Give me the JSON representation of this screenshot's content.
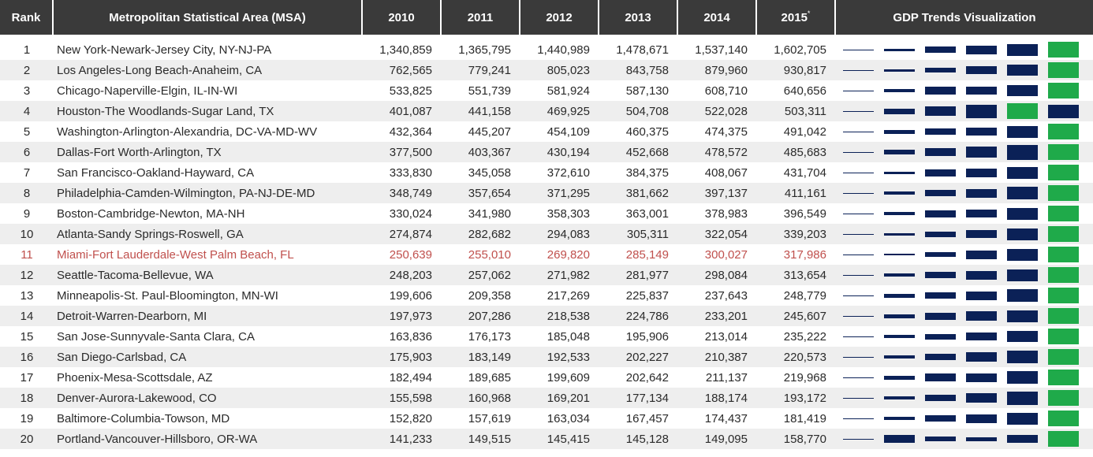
{
  "headers": {
    "rank": "Rank",
    "msa": "Metropolitan Statistical Area (MSA)",
    "years": [
      "2010",
      "2011",
      "2012",
      "2013",
      "2014",
      "2015"
    ],
    "footnote_mark": "*",
    "viz": "GDP Trends Visualization"
  },
  "colors": {
    "bar": "#0b2157",
    "max_bar": "#1faa4a",
    "highlight_text": "#c0504d",
    "header_bg": "#3a3a3a",
    "stripe": "#eeeeee"
  },
  "rows": [
    {
      "rank": "1",
      "msa": "New York-Newark-Jersey City, NY-NJ-PA",
      "values": [
        "1,340,859",
        "1,365,795",
        "1,440,989",
        "1,478,671",
        "1,537,140",
        "1,602,705"
      ]
    },
    {
      "rank": "2",
      "msa": "Los Angeles-Long Beach-Anaheim, CA",
      "values": [
        "762,565",
        "779,241",
        "805,023",
        "843,758",
        "879,960",
        "930,817"
      ]
    },
    {
      "rank": "3",
      "msa": "Chicago-Naperville-Elgin, IL-IN-WI",
      "values": [
        "533,825",
        "551,739",
        "581,924",
        "587,130",
        "608,710",
        "640,656"
      ]
    },
    {
      "rank": "4",
      "msa": "Houston-The Woodlands-Sugar Land, TX",
      "values": [
        "401,087",
        "441,158",
        "469,925",
        "504,708",
        "522,028",
        "503,311"
      ]
    },
    {
      "rank": "5",
      "msa": "Washington-Arlington-Alexandria, DC-VA-MD-WV",
      "values": [
        "432,364",
        "445,207",
        "454,109",
        "460,375",
        "474,375",
        "491,042"
      ]
    },
    {
      "rank": "6",
      "msa": "Dallas-Fort Worth-Arlington, TX",
      "values": [
        "377,500",
        "403,367",
        "430,194",
        "452,668",
        "478,572",
        "485,683"
      ]
    },
    {
      "rank": "7",
      "msa": "San Francisco-Oakland-Hayward, CA",
      "values": [
        "333,830",
        "345,058",
        "372,610",
        "384,375",
        "408,067",
        "431,704"
      ]
    },
    {
      "rank": "8",
      "msa": "Philadelphia-Camden-Wilmington, PA-NJ-DE-MD",
      "values": [
        "348,749",
        "357,654",
        "371,295",
        "381,662",
        "397,137",
        "411,161"
      ]
    },
    {
      "rank": "9",
      "msa": "Boston-Cambridge-Newton, MA-NH",
      "values": [
        "330,024",
        "341,980",
        "358,303",
        "363,001",
        "378,983",
        "396,549"
      ]
    },
    {
      "rank": "10",
      "msa": "Atlanta-Sandy Springs-Roswell, GA",
      "values": [
        "274,874",
        "282,682",
        "294,083",
        "305,311",
        "322,054",
        "339,203"
      ]
    },
    {
      "rank": "11",
      "msa": "Miami-Fort Lauderdale-West Palm Beach, FL",
      "values": [
        "250,639",
        "255,010",
        "269,820",
        "285,149",
        "300,027",
        "317,986"
      ],
      "highlight": true
    },
    {
      "rank": "12",
      "msa": "Seattle-Tacoma-Bellevue, WA",
      "values": [
        "248,203",
        "257,062",
        "271,982",
        "281,977",
        "298,084",
        "313,654"
      ]
    },
    {
      "rank": "13",
      "msa": "Minneapolis-St. Paul-Bloomington, MN-WI",
      "values": [
        "199,606",
        "209,358",
        "217,269",
        "225,837",
        "237,643",
        "248,779"
      ]
    },
    {
      "rank": "14",
      "msa": "Detroit-Warren-Dearborn, MI",
      "values": [
        "197,973",
        "207,286",
        "218,538",
        "224,786",
        "233,201",
        "245,607"
      ]
    },
    {
      "rank": "15",
      "msa": "San Jose-Sunnyvale-Santa Clara, CA",
      "values": [
        "163,836",
        "176,173",
        "185,048",
        "195,906",
        "213,014",
        "235,222"
      ]
    },
    {
      "rank": "16",
      "msa": "San Diego-Carlsbad, CA",
      "values": [
        "175,903",
        "183,149",
        "192,533",
        "202,227",
        "210,387",
        "220,573"
      ]
    },
    {
      "rank": "17",
      "msa": "Phoenix-Mesa-Scottsdale, AZ",
      "values": [
        "182,494",
        "189,685",
        "199,609",
        "202,642",
        "211,137",
        "219,968"
      ]
    },
    {
      "rank": "18",
      "msa": "Denver-Aurora-Lakewood, CO",
      "values": [
        "155,598",
        "160,968",
        "169,201",
        "177,134",
        "188,174",
        "193,172"
      ]
    },
    {
      "rank": "19",
      "msa": "Baltimore-Columbia-Towson, MD",
      "values": [
        "152,820",
        "157,619",
        "163,034",
        "167,457",
        "174,437",
        "181,419"
      ]
    },
    {
      "rank": "20",
      "msa": "Portland-Vancouver-Hillsboro, OR-WA",
      "values": [
        "141,233",
        "149,515",
        "145,415",
        "145,128",
        "149,095",
        "158,770"
      ]
    }
  ]
}
